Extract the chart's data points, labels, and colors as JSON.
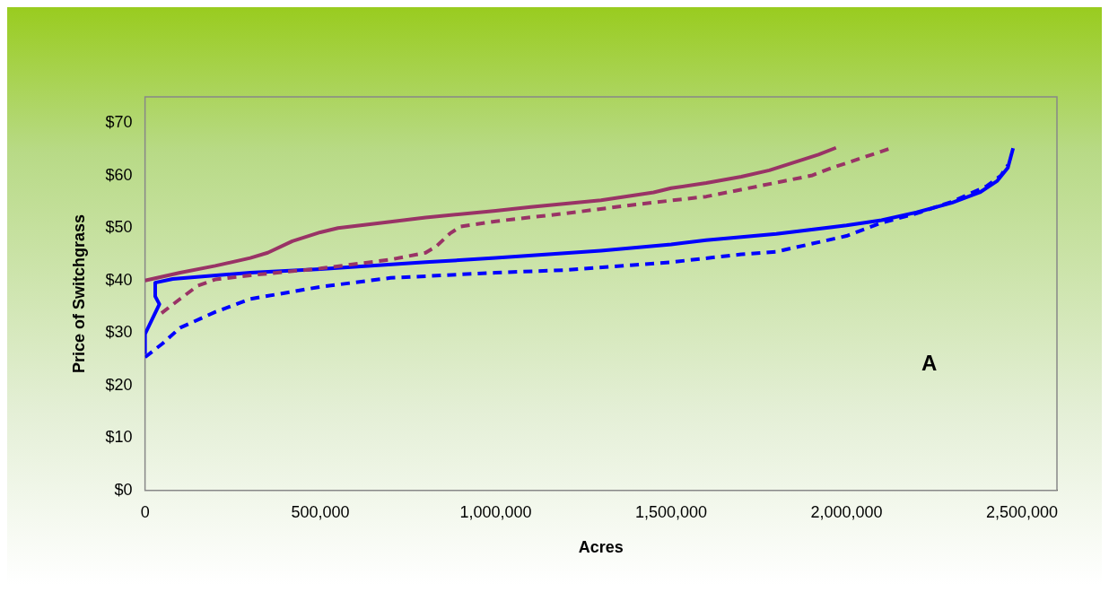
{
  "chart_data": {
    "type": "line",
    "xlabel": "Acres",
    "ylabel": "Price of Switchgrass",
    "annotations": [
      "A"
    ],
    "xlim": [
      0,
      2600000
    ],
    "xticks": [
      0,
      {
        "value": 500000,
        "label": "500,000"
      },
      {
        "value": 1000000,
        "label": "1,000,000"
      },
      {
        "value": 1500000,
        "label": "1,500,000"
      },
      {
        "value": 2000000,
        "label": "2,000,000"
      },
      {
        "value": 2500000,
        "label": "2,500,000"
      }
    ],
    "ylim": [
      0,
      75
    ],
    "yticks": [
      {
        "value": 0,
        "label": "$0"
      },
      {
        "value": 10,
        "label": "$10"
      },
      {
        "value": 20,
        "label": "$20"
      },
      {
        "value": 30,
        "label": "$30"
      },
      {
        "value": 40,
        "label": "$40"
      },
      {
        "value": 50,
        "label": "$50"
      },
      {
        "value": 60,
        "label": "$60"
      },
      {
        "value": 70,
        "label": "$70"
      }
    ],
    "grid": false,
    "legend": false,
    "series": [
      {
        "color": "#993366",
        "line_style": "solid",
        "x": [
          0,
          100000,
          200000,
          300000,
          350000,
          420000,
          500000,
          550000,
          700000,
          800000,
          1000000,
          1100000,
          1300000,
          1450000,
          1500000,
          1600000,
          1700000,
          1780000,
          1850000,
          1920000,
          1970000
        ],
        "values": [
          40,
          41.5,
          42.8,
          44.3,
          45.3,
          47.5,
          49.2,
          50,
          51.2,
          52,
          53.3,
          54,
          55.3,
          56.8,
          57.6,
          58.6,
          59.8,
          61,
          62.5,
          64,
          65.3
        ]
      },
      {
        "color": "#993366",
        "line_style": "dashed",
        "x": [
          47000,
          100000,
          150000,
          200000,
          300000,
          500000,
          700000,
          800000,
          830000,
          870000,
          900000,
          1000000,
          1200000,
          1400000,
          1600000,
          1750000,
          1900000,
          1960000,
          2050000,
          2130000
        ],
        "values": [
          33.8,
          36.5,
          39,
          40.2,
          41,
          42.3,
          44,
          45.3,
          46.5,
          49,
          50.3,
          51.3,
          52.8,
          54.5,
          56,
          58,
          60,
          61.5,
          63.5,
          65.3
        ]
      },
      {
        "color": "#0000ff",
        "line_style": "solid",
        "x": [
          0,
          0,
          41000,
          29000,
          29000,
          79000,
          300000,
          500000,
          800000,
          1000000,
          1300000,
          1500000,
          1600000,
          1800000,
          2000000,
          2100000,
          2200000,
          2300000,
          2380000,
          2430000,
          2460000,
          2475000
        ],
        "values": [
          26,
          29.8,
          35.5,
          37,
          39.6,
          40.3,
          41.5,
          42.2,
          43.5,
          44.3,
          45.7,
          46.9,
          47.7,
          48.9,
          50.5,
          51.5,
          53,
          54.8,
          56.8,
          59,
          61.5,
          65.2
        ]
      },
      {
        "color": "#0000ff",
        "line_style": "dashed",
        "x": [
          0,
          50000,
          100000,
          200000,
          300000,
          500000,
          700000,
          1000000,
          1200000,
          1500000,
          1700000,
          1800000,
          1900000,
          2000000,
          2100000,
          2200000,
          2300000,
          2400000,
          2440000,
          2460000
        ],
        "values": [
          25.4,
          28,
          31,
          34,
          36.5,
          38.8,
          40.5,
          41.5,
          42,
          43.5,
          45,
          45.5,
          47,
          48.5,
          51,
          52.8,
          55,
          58,
          60,
          62
        ]
      }
    ]
  }
}
